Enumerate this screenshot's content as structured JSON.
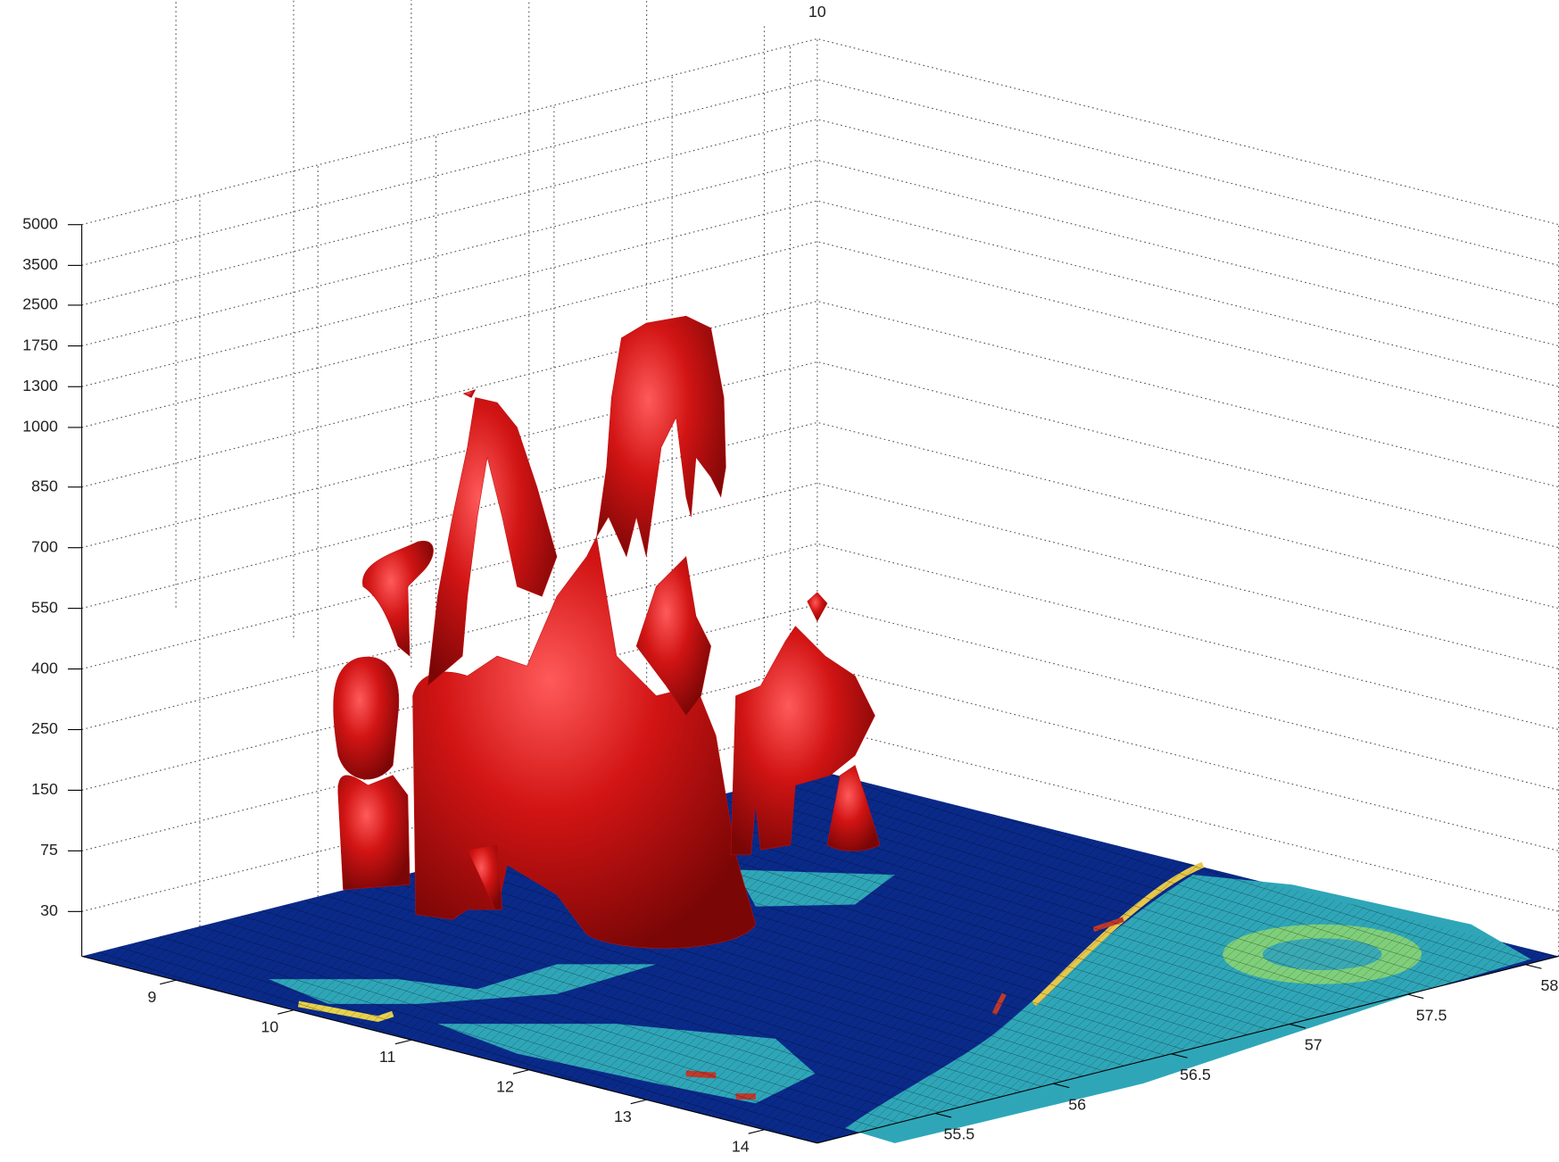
{
  "chart_data": {
    "type": "isosurface",
    "z_levels": [
      "30",
      "75",
      "150",
      "250",
      "400",
      "550",
      "700",
      "850",
      "1000",
      "1300",
      "1750",
      "2500",
      "3500",
      "5000"
    ],
    "z_top_label": "10",
    "xlim": [
      8.2,
      14.45
    ],
    "xticks": [
      9,
      10,
      11,
      12,
      13,
      14
    ],
    "ylim": [
      55.0,
      58.14
    ],
    "yticks": [
      55.5,
      56,
      56.5,
      57,
      57.5,
      58
    ],
    "grid": true,
    "surface_color": "#c00d0d",
    "floor_color": "#0a2a8a"
  }
}
